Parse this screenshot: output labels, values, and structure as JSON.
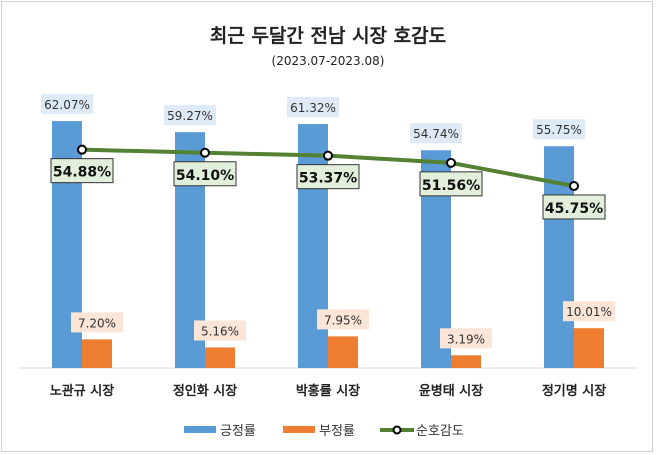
{
  "chart_data": {
    "type": "bar+line",
    "title": "최근 두달간 전남 시장 호감도",
    "subtitle": "(2023.07-2023.08)",
    "categories": [
      "노관규 시장",
      "정인화 시장",
      "박홍률 시장",
      "윤병태 시장",
      "정기명 시장"
    ],
    "series": [
      {
        "name": "긍정률",
        "type": "bar",
        "color": "#5b9bd5",
        "values": [
          62.07,
          59.27,
          61.32,
          54.74,
          55.75
        ],
        "labels": [
          "62.07%",
          "59.27%",
          "61.32%",
          "54.74%",
          "55.75%"
        ]
      },
      {
        "name": "부정률",
        "type": "bar",
        "color": "#ed7d31",
        "values": [
          7.2,
          5.16,
          7.95,
          3.19,
          10.01
        ],
        "labels": [
          "7.20%",
          "5.16%",
          "7.95%",
          "3.19%",
          "10.01%"
        ]
      },
      {
        "name": "순호감도",
        "type": "line",
        "color": "#548235",
        "values": [
          54.88,
          54.1,
          53.37,
          51.56,
          45.75
        ],
        "labels": [
          "54.88%",
          "54.10%",
          "53.37%",
          "51.56%",
          "45.75%"
        ]
      }
    ],
    "ylim": [
      0,
      70
    ],
    "grid": false,
    "legend": "bottom"
  }
}
